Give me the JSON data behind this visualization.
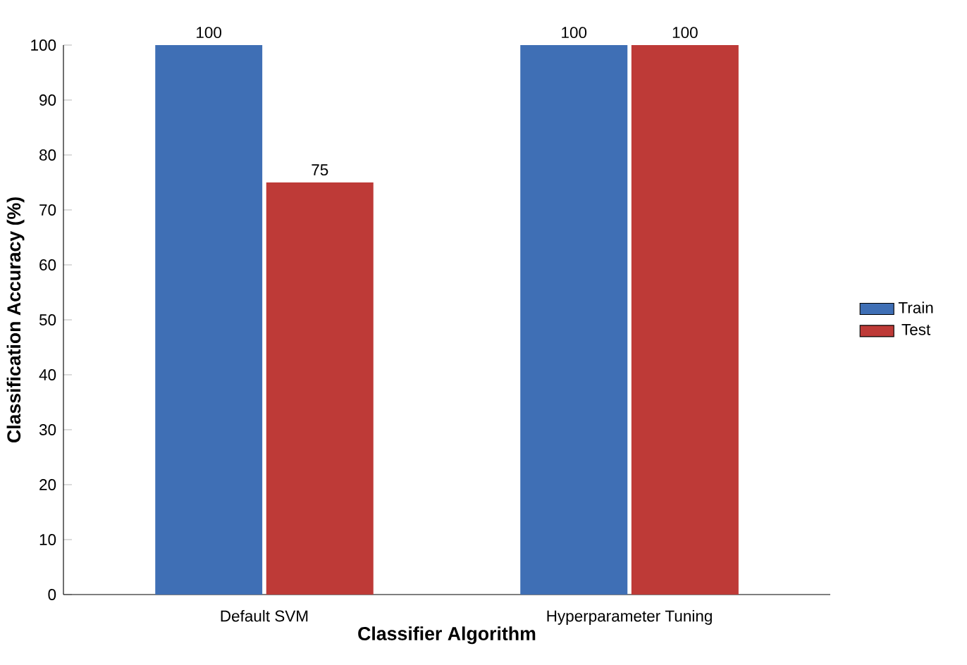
{
  "chart_data": {
    "type": "bar",
    "xlabel": "Classifier Algorithm",
    "ylabel": "Classification Accuracy (%)",
    "categories": [
      "Default SVM",
      "Hyperparameter Tuning"
    ],
    "series": [
      {
        "name": "Train",
        "color": "#3f6fb5",
        "values": [
          100,
          100
        ]
      },
      {
        "name": "Test",
        "color": "#be3a37",
        "values": [
          75,
          100
        ]
      }
    ],
    "ylim": [
      0,
      100
    ],
    "yticks": [
      0,
      10,
      20,
      30,
      40,
      50,
      60,
      70,
      80,
      90,
      100
    ],
    "data_labels": true,
    "legend": "right"
  }
}
